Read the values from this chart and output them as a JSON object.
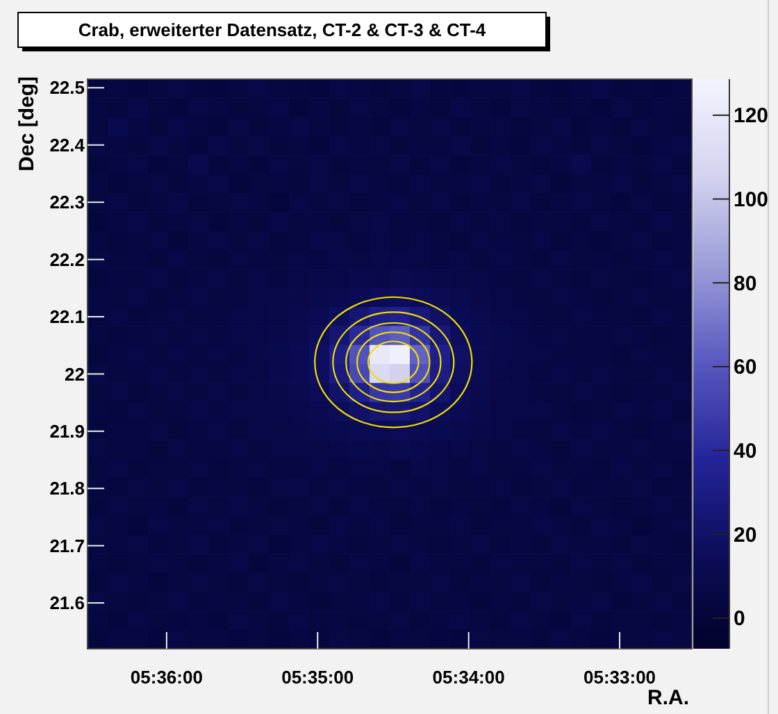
{
  "chart_data": {
    "type": "heatmap",
    "title": "Crab, erweiterter Datensatz, CT-2 & CT-3 & CT-4",
    "xlabel": "R.A.",
    "ylabel": "Dec [deg]",
    "xlim": [
      5.60873,
      5.54203
    ],
    "xticks": [
      {
        "value": 5.6,
        "label": "05:36:00"
      },
      {
        "value": 5.583333,
        "label": "05:35:00"
      },
      {
        "value": 5.566667,
        "label": "05:34:00"
      },
      {
        "value": 5.55,
        "label": "05:33:00"
      }
    ],
    "ylim": [
      21.52,
      22.515
    ],
    "yticks": [
      21.6,
      21.7,
      21.8,
      21.9,
      22,
      22.1,
      22.2,
      22.3,
      22.4,
      22.5
    ],
    "clim": [
      -7.3,
      128.6
    ],
    "cticks": [
      0,
      20,
      40,
      60,
      80,
      100,
      120
    ],
    "cells": [
      [
        3,
        5,
        2,
        4,
        6,
        3,
        2,
        5,
        7,
        4,
        3,
        2,
        6,
        5,
        3,
        4,
        8,
        3,
        2,
        5,
        4,
        6,
        3,
        2,
        5,
        7,
        3,
        4,
        2,
        5
      ],
      [
        5,
        3,
        8,
        4,
        2,
        6,
        5,
        3,
        4,
        7,
        2,
        5,
        3,
        6,
        4,
        2,
        5,
        3,
        7,
        4,
        2,
        6,
        5,
        3,
        4,
        2,
        6,
        3,
        5,
        4
      ],
      [
        4,
        9,
        5,
        3,
        7,
        4,
        2,
        6,
        3,
        5,
        8,
        4,
        3,
        5,
        2,
        6,
        4,
        7,
        3,
        5,
        6,
        3,
        4,
        8,
        2,
        5,
        3,
        6,
        4,
        3
      ],
      [
        6,
        4,
        3,
        7,
        5,
        2,
        8,
        4,
        6,
        3,
        5,
        2,
        7,
        4,
        6,
        3,
        5,
        4,
        8,
        3,
        4,
        2,
        7,
        5,
        3,
        6,
        4,
        2,
        5,
        7
      ],
      [
        3,
        5,
        6,
        2,
        4,
        9,
        3,
        5,
        2,
        6,
        4,
        7,
        3,
        5,
        4,
        8,
        3,
        6,
        2,
        5,
        7,
        4,
        3,
        5,
        9,
        3,
        5,
        4,
        6,
        3
      ],
      [
        5,
        2,
        4,
        6,
        3,
        5,
        7,
        2,
        4,
        5,
        3,
        6,
        4,
        8,
        5,
        3,
        6,
        4,
        5,
        7,
        3,
        5,
        6,
        2,
        4,
        5,
        7,
        3,
        4,
        6
      ],
      [
        4,
        6,
        3,
        5,
        8,
        3,
        4,
        6,
        5,
        2,
        7,
        4,
        6,
        3,
        5,
        7,
        4,
        6,
        3,
        5,
        4,
        6,
        3,
        5,
        7,
        4,
        2,
        6,
        3,
        5
      ],
      [
        2,
        5,
        7,
        3,
        4,
        6,
        2,
        5,
        3,
        7,
        4,
        5,
        3,
        6,
        8,
        4,
        5,
        3,
        7,
        4,
        6,
        3,
        5,
        4,
        3,
        6,
        5,
        3,
        7,
        4
      ],
      [
        5,
        3,
        4,
        6,
        2,
        5,
        7,
        4,
        6,
        3,
        5,
        8,
        6,
        4,
        7,
        5,
        6,
        4,
        3,
        6,
        5,
        4,
        7,
        3,
        5,
        2,
        4,
        6,
        3,
        5
      ],
      [
        6,
        4,
        5,
        3,
        7,
        4,
        3,
        6,
        5,
        4,
        6,
        5,
        7,
        6,
        8,
        7,
        6,
        5,
        7,
        4,
        6,
        5,
        3,
        6,
        4,
        5,
        3,
        5,
        6,
        4
      ],
      [
        3,
        5,
        4,
        7,
        3,
        5,
        6,
        4,
        7,
        5,
        6,
        8,
        7,
        9,
        8,
        10,
        9,
        8,
        6,
        7,
        5,
        4,
        6,
        5,
        3,
        6,
        4,
        3,
        5,
        6
      ],
      [
        5,
        4,
        6,
        3,
        5,
        7,
        4,
        5,
        6,
        7,
        8,
        9,
        11,
        13,
        15,
        16,
        14,
        12,
        10,
        8,
        7,
        5,
        4,
        6,
        5,
        3,
        5,
        6,
        4,
        5
      ],
      [
        4,
        6,
        3,
        5,
        6,
        4,
        5,
        7,
        6,
        8,
        9,
        12,
        17,
        24,
        32,
        34,
        27,
        19,
        13,
        10,
        8,
        6,
        5,
        4,
        6,
        5,
        4,
        3,
        6,
        4
      ],
      [
        5,
        3,
        5,
        6,
        4,
        6,
        5,
        6,
        7,
        8,
        11,
        15,
        24,
        40,
        58,
        62,
        44,
        26,
        16,
        11,
        9,
        7,
        5,
        6,
        4,
        5,
        6,
        5,
        3,
        5
      ],
      [
        3,
        5,
        6,
        4,
        7,
        5,
        6,
        5,
        8,
        9,
        12,
        18,
        31,
        58,
        120,
        125,
        64,
        33,
        19,
        12,
        9,
        7,
        6,
        5,
        5,
        4,
        3,
        6,
        5,
        4
      ],
      [
        6,
        4,
        5,
        7,
        5,
        6,
        4,
        7,
        6,
        9,
        12,
        17,
        29,
        54,
        110,
        105,
        57,
        30,
        18,
        12,
        8,
        6,
        5,
        7,
        4,
        6,
        5,
        4,
        6,
        5
      ],
      [
        4,
        6,
        3,
        5,
        6,
        4,
        7,
        5,
        7,
        8,
        10,
        14,
        21,
        33,
        46,
        47,
        36,
        23,
        15,
        10,
        8,
        7,
        5,
        4,
        6,
        5,
        3,
        5,
        4,
        6
      ],
      [
        5,
        3,
        6,
        4,
        5,
        7,
        5,
        6,
        6,
        7,
        9,
        11,
        15,
        20,
        24,
        25,
        21,
        16,
        12,
        9,
        7,
        6,
        6,
        5,
        3,
        4,
        6,
        5,
        7,
        3
      ],
      [
        3,
        5,
        4,
        6,
        3,
        5,
        6,
        4,
        7,
        6,
        8,
        9,
        10,
        12,
        13,
        14,
        12,
        11,
        9,
        8,
        7,
        5,
        4,
        6,
        5,
        7,
        4,
        3,
        5,
        6
      ],
      [
        6,
        4,
        5,
        3,
        6,
        4,
        5,
        7,
        5,
        6,
        7,
        6,
        8,
        9,
        8,
        10,
        9,
        7,
        8,
        6,
        5,
        7,
        5,
        3,
        6,
        4,
        5,
        6,
        4,
        5
      ],
      [
        4,
        7,
        3,
        5,
        4,
        6,
        3,
        5,
        6,
        4,
        5,
        7,
        5,
        6,
        7,
        5,
        8,
        6,
        5,
        7,
        4,
        5,
        6,
        4,
        5,
        3,
        7,
        4,
        6,
        3
      ],
      [
        5,
        3,
        6,
        4,
        7,
        3,
        5,
        4,
        3,
        6,
        8,
        4,
        6,
        5,
        4,
        7,
        5,
        6,
        4,
        5,
        6,
        3,
        4,
        7,
        3,
        5,
        4,
        6,
        3,
        5
      ],
      [
        3,
        6,
        4,
        5,
        2,
        6,
        4,
        7,
        5,
        3,
        4,
        6,
        3,
        7,
        5,
        4,
        6,
        3,
        5,
        4,
        3,
        6,
        5,
        2,
        6,
        4,
        3,
        5,
        7,
        4
      ],
      [
        6,
        4,
        2,
        7,
        5,
        4,
        6,
        3,
        4,
        6,
        5,
        3,
        7,
        4,
        6,
        3,
        4,
        5,
        6,
        3,
        5,
        4,
        7,
        5,
        3,
        6,
        5,
        2,
        4,
        6
      ],
      [
        4,
        5,
        6,
        3,
        4,
        8,
        3,
        5,
        6,
        2,
        4,
        7,
        5,
        3,
        4,
        6,
        5,
        3,
        4,
        7,
        3,
        5,
        3,
        6,
        4,
        5,
        3,
        6,
        5,
        3
      ],
      [
        5,
        3,
        4,
        6,
        5,
        3,
        5,
        7,
        2,
        5,
        6,
        4,
        3,
        6,
        5,
        2,
        7,
        4,
        5,
        3,
        6,
        4,
        5,
        3,
        7,
        4,
        6,
        3,
        4,
        5
      ],
      [
        3,
        6,
        5,
        2,
        4,
        6,
        4,
        3,
        6,
        4,
        3,
        5,
        6,
        4,
        3,
        5,
        4,
        6,
        3,
        5,
        4,
        7,
        3,
        5,
        4,
        3,
        5,
        7,
        3,
        6
      ],
      [
        6,
        4,
        3,
        5,
        7,
        3,
        5,
        4,
        3,
        6,
        5,
        2,
        4,
        5,
        7,
        3,
        6,
        4,
        5,
        2,
        5,
        3,
        6,
        4,
        5,
        6,
        2,
        4,
        6,
        3
      ],
      [
        4,
        2,
        6,
        4,
        3,
        5,
        2,
        6,
        5,
        3,
        7,
        4,
        5,
        3,
        4,
        6,
        3,
        5,
        7,
        4,
        3,
        6,
        4,
        2,
        6,
        3,
        5,
        4,
        3,
        5
      ],
      [
        3,
        5,
        4,
        2,
        6,
        4,
        5,
        3,
        4,
        2,
        5,
        3,
        6,
        4,
        2,
        5,
        4,
        3,
        2,
        6,
        4,
        5,
        3,
        6,
        4,
        2,
        4,
        5,
        6,
        4
      ]
    ]
  }
}
